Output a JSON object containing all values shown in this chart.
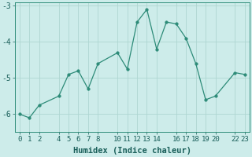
{
  "x": [
    0,
    1,
    2,
    4,
    5,
    6,
    7,
    8,
    10,
    11,
    12,
    13,
    14,
    15,
    16,
    17,
    18,
    19,
    20,
    22,
    23
  ],
  "y": [
    -6.0,
    -6.1,
    -5.75,
    -5.5,
    -4.9,
    -4.8,
    -5.3,
    -4.6,
    -4.3,
    -4.75,
    -3.45,
    -3.1,
    -4.2,
    -3.45,
    -3.5,
    -3.9,
    -4.6,
    -5.6,
    -5.5,
    -4.85,
    -4.9
  ],
  "xlabel": "Humidex (Indice chaleur)",
  "xlim_min": -0.5,
  "xlim_max": 23.5,
  "ylim_min": -6.5,
  "ylim_max": -2.9,
  "yticks": [
    -6,
    -5,
    -4,
    -3
  ],
  "xticks": [
    0,
    1,
    2,
    4,
    5,
    6,
    7,
    8,
    10,
    11,
    12,
    13,
    14,
    16,
    17,
    18,
    19,
    20,
    22,
    23
  ],
  "line_color": "#2d8b78",
  "marker_size": 2.5,
  "bg_color": "#cdecea",
  "grid_color": "#aed6d2",
  "font_color": "#1a5f5a",
  "tick_fontsize": 6.5,
  "xlabel_fontsize": 7.5
}
